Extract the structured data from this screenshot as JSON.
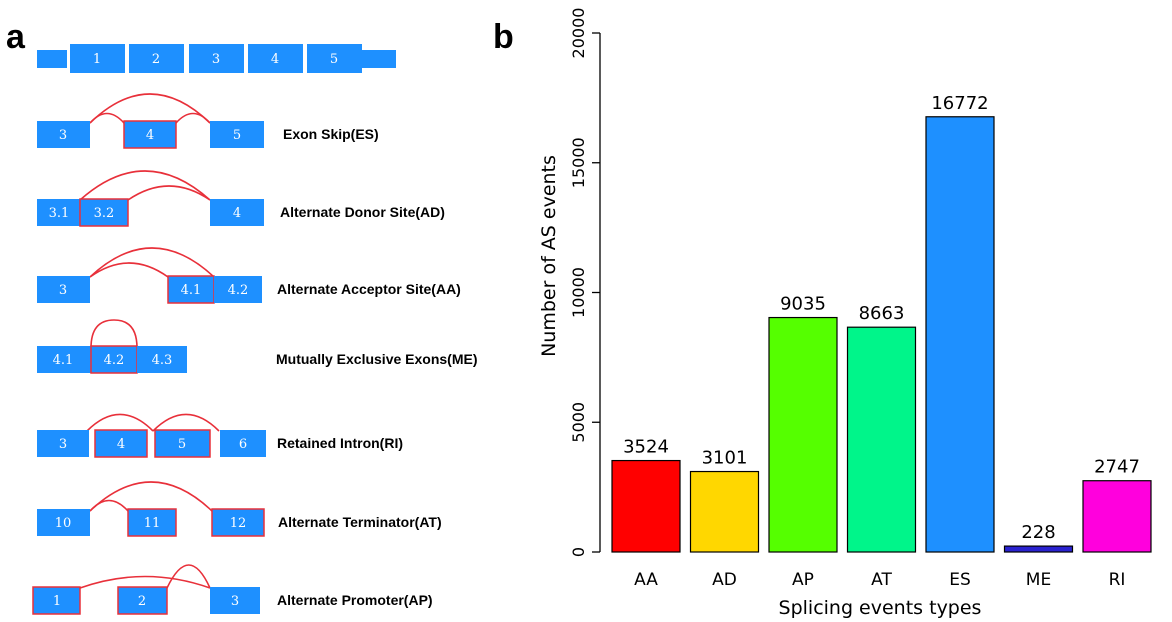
{
  "panel_a": {
    "letter": "a",
    "colors": {
      "exon": "#1E90FF",
      "highlight": "#E8303A",
      "arc": "#E8303A"
    },
    "top_exons": [
      "1",
      "2",
      "3",
      "4",
      "5"
    ],
    "events": [
      {
        "label": "Exon Skip(ES)",
        "exons": [
          "3",
          "4",
          "5"
        ]
      },
      {
        "label": "Alternate Donor Site(AD)",
        "exons": [
          "3.1",
          "3.2",
          "4"
        ]
      },
      {
        "label": "Alternate Acceptor Site(AA)",
        "exons": [
          "3",
          "4.1",
          "4.2"
        ]
      },
      {
        "label": "Mutually Exclusive Exons(ME)",
        "exons": [
          "4.1",
          "4.2",
          "4.3"
        ]
      },
      {
        "label": "Retained Intron(RI)",
        "exons": [
          "3",
          "4",
          "5",
          "6"
        ]
      },
      {
        "label": "Alternate Terminator(AT)",
        "exons": [
          "10",
          "11",
          "12"
        ]
      },
      {
        "label": "Alternate Promoter(AP)",
        "exons": [
          "1",
          "2",
          "3"
        ]
      }
    ]
  },
  "panel_b": {
    "letter": "b"
  },
  "chart_data": {
    "type": "bar",
    "categories": [
      "AA",
      "AD",
      "AP",
      "AT",
      "ES",
      "ME",
      "RI"
    ],
    "values": [
      3524,
      3101,
      9035,
      8663,
      16772,
      228,
      2747
    ],
    "data_labels": [
      "3524",
      "3101",
      "9035",
      "8663",
      "16772",
      "228",
      "2747"
    ],
    "colors": [
      "#FF0000",
      "#FFD700",
      "#55FF00",
      "#00F58A",
      "#1E90FF",
      "#2A22D0",
      "#FF00DD"
    ],
    "xlabel": "Splicing events types",
    "ylabel": "Number of AS events",
    "ylim": [
      0,
      20000
    ],
    "yticks": [
      0,
      5000,
      10000,
      15000,
      20000
    ],
    "ytick_labels": [
      "0",
      "5000",
      "10000",
      "15000",
      "20000"
    ],
    "grid": false,
    "legend": "none"
  }
}
